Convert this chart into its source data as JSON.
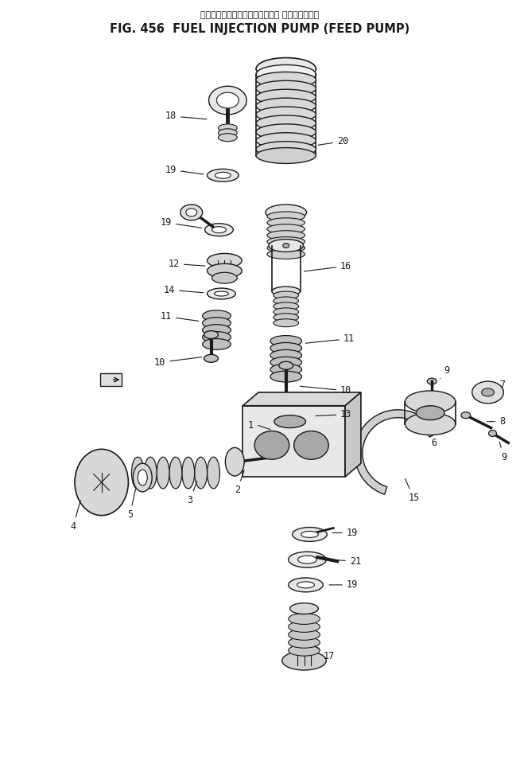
{
  "title_japanese": "フェエルインジェクションポンプ フィードポンプ",
  "title_english": "FIG. 456  FUEL INJECTION PUMP (FEED PUMP)",
  "bg_color": "#ffffff",
  "fig_width": 6.54,
  "fig_height": 9.75
}
